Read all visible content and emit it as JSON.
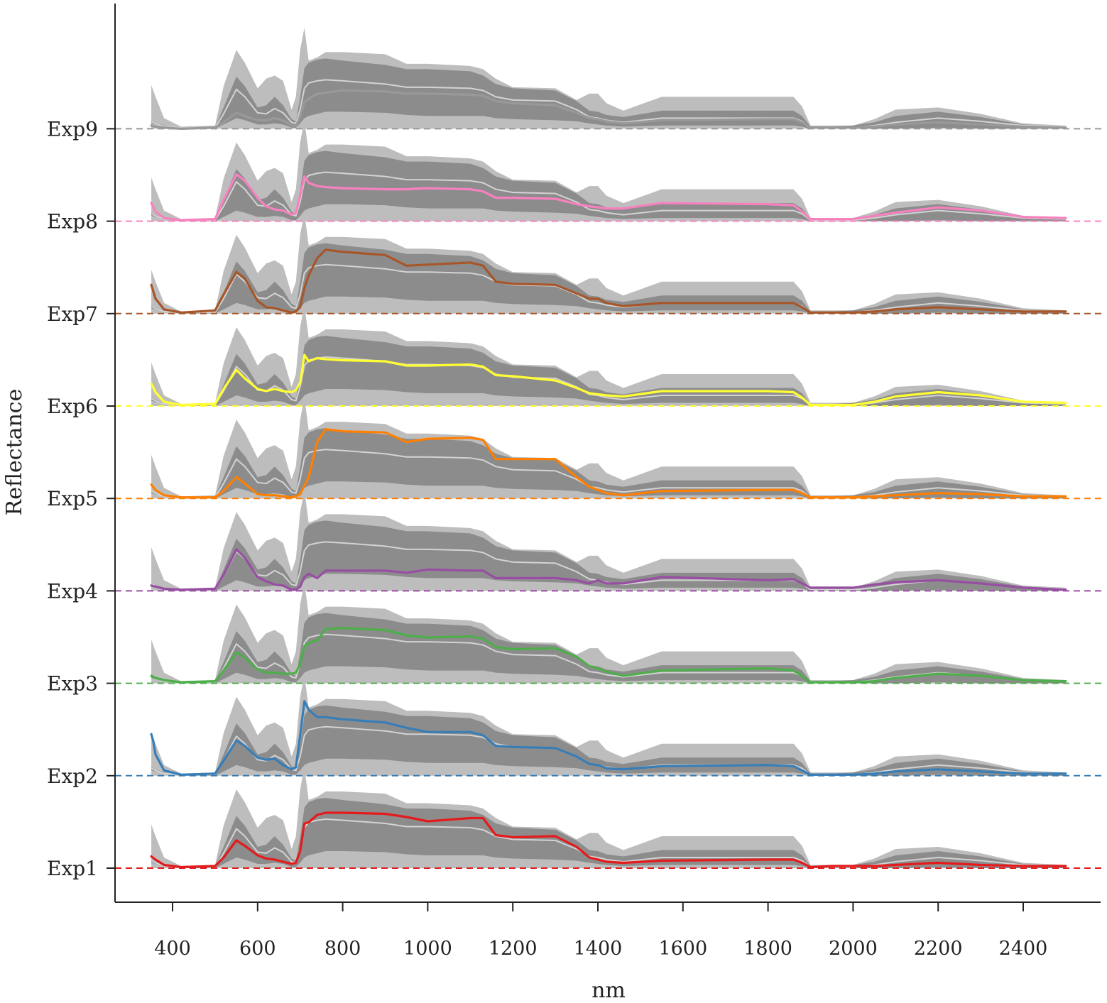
{
  "chart_data": {
    "type": "area",
    "xlabel": "nm",
    "ylabel": "Reflectance",
    "xlim": [
      350,
      2500
    ],
    "x_ticks": [
      400,
      600,
      800,
      1000,
      1200,
      1400,
      1600,
      1800,
      2000,
      2200,
      2400
    ],
    "x_tick_labels": [
      "400",
      "600",
      "800",
      "1000",
      "1200",
      "1400",
      "1600",
      "1800",
      "2000",
      "2200",
      "2400"
    ],
    "categories": [
      "Exp1",
      "Exp2",
      "Exp3",
      "Exp4",
      "Exp5",
      "Exp6",
      "Exp7",
      "Exp8",
      "Exp9"
    ],
    "band_colors": {
      "outer": "#bdbdbd",
      "inner": "#8c8c8c",
      "median": "#d3d3d3"
    },
    "envelope": {
      "x": [
        350,
        360,
        380,
        420,
        500,
        520,
        550,
        570,
        600,
        620,
        640,
        660,
        680,
        690,
        700,
        710,
        720,
        740,
        760,
        800,
        900,
        950,
        1000,
        1100,
        1130,
        1160,
        1200,
        1300,
        1350,
        1380,
        1400,
        1420,
        1460,
        1550,
        1800,
        1860,
        1880,
        1900,
        1950,
        2000,
        2050,
        2100,
        2200,
        2300,
        2400,
        2500
      ],
      "q_low": [
        0.05,
        0.04,
        0.02,
        0.0,
        0.0,
        0.04,
        0.1,
        0.08,
        0.04,
        0.04,
        0.05,
        0.04,
        0.01,
        0.01,
        0.05,
        0.1,
        0.12,
        0.14,
        0.16,
        0.16,
        0.15,
        0.13,
        0.12,
        0.12,
        0.12,
        0.1,
        0.09,
        0.08,
        0.07,
        0.05,
        0.04,
        0.03,
        0.02,
        0.03,
        0.03,
        0.03,
        0.02,
        0.0,
        0.0,
        0.0,
        0.0,
        0.0,
        0.01,
        0.0,
        0.0,
        0.0
      ],
      "q25": [
        0.05,
        0.04,
        0.02,
        0.01,
        0.01,
        0.1,
        0.27,
        0.22,
        0.11,
        0.1,
        0.15,
        0.11,
        0.04,
        0.03,
        0.12,
        0.29,
        0.33,
        0.35,
        0.36,
        0.35,
        0.33,
        0.3,
        0.3,
        0.29,
        0.28,
        0.23,
        0.2,
        0.2,
        0.14,
        0.09,
        0.08,
        0.06,
        0.05,
        0.08,
        0.08,
        0.08,
        0.05,
        0.01,
        0.01,
        0.01,
        0.02,
        0.05,
        0.08,
        0.05,
        0.02,
        0.01
      ],
      "median": [
        0.07,
        0.05,
        0.02,
        0.01,
        0.01,
        0.14,
        0.37,
        0.3,
        0.15,
        0.14,
        0.19,
        0.15,
        0.06,
        0.05,
        0.18,
        0.38,
        0.43,
        0.45,
        0.46,
        0.45,
        0.42,
        0.39,
        0.39,
        0.38,
        0.36,
        0.3,
        0.27,
        0.26,
        0.18,
        0.11,
        0.1,
        0.08,
        0.06,
        0.1,
        0.1,
        0.1,
        0.07,
        0.01,
        0.01,
        0.01,
        0.03,
        0.06,
        0.1,
        0.07,
        0.03,
        0.02
      ],
      "q75": [
        0.08,
        0.06,
        0.03,
        0.01,
        0.02,
        0.2,
        0.49,
        0.4,
        0.2,
        0.22,
        0.3,
        0.22,
        0.09,
        0.07,
        0.29,
        0.57,
        0.62,
        0.65,
        0.66,
        0.64,
        0.6,
        0.56,
        0.56,
        0.54,
        0.5,
        0.42,
        0.38,
        0.36,
        0.26,
        0.17,
        0.16,
        0.13,
        0.11,
        0.17,
        0.17,
        0.17,
        0.12,
        0.02,
        0.02,
        0.03,
        0.06,
        0.12,
        0.16,
        0.11,
        0.04,
        0.02
      ],
      "q_high": [
        0.41,
        0.3,
        0.1,
        0.02,
        0.03,
        0.4,
        0.74,
        0.62,
        0.38,
        0.47,
        0.5,
        0.45,
        0.18,
        0.3,
        0.74,
        0.95,
        0.64,
        0.67,
        0.72,
        0.72,
        0.7,
        0.61,
        0.61,
        0.59,
        0.56,
        0.47,
        0.39,
        0.38,
        0.27,
        0.33,
        0.33,
        0.24,
        0.17,
        0.3,
        0.3,
        0.3,
        0.21,
        0.03,
        0.03,
        0.03,
        0.09,
        0.18,
        0.2,
        0.14,
        0.05,
        0.03
      ]
    },
    "series": [
      {
        "name": "Exp1",
        "color": "#e41a1c",
        "x": [
          350,
          360,
          380,
          420,
          500,
          520,
          550,
          570,
          600,
          620,
          640,
          660,
          680,
          690,
          700,
          710,
          720,
          740,
          760,
          800,
          900,
          950,
          1000,
          1100,
          1130,
          1160,
          1200,
          1300,
          1350,
          1380,
          1400,
          1420,
          1460,
          1550,
          1800,
          1860,
          1880,
          1900,
          1950,
          2000,
          2050,
          2100,
          2200,
          2300,
          2400,
          2500
        ],
        "y": [
          0.11,
          0.08,
          0.03,
          0.01,
          0.02,
          0.1,
          0.26,
          0.21,
          0.12,
          0.09,
          0.08,
          0.06,
          0.04,
          0.05,
          0.16,
          0.42,
          0.43,
          0.5,
          0.52,
          0.52,
          0.51,
          0.48,
          0.44,
          0.47,
          0.47,
          0.31,
          0.29,
          0.3,
          0.2,
          0.1,
          0.08,
          0.06,
          0.05,
          0.07,
          0.08,
          0.08,
          0.05,
          0.01,
          0.02,
          0.02,
          0.02,
          0.03,
          0.05,
          0.03,
          0.02,
          0.02
        ]
      },
      {
        "name": "Exp2",
        "color": "#377eb8",
        "x": [
          350,
          355,
          360,
          380,
          420,
          500,
          520,
          550,
          570,
          600,
          620,
          640,
          660,
          680,
          690,
          700,
          710,
          720,
          740,
          760,
          800,
          900,
          950,
          1000,
          1100,
          1130,
          1160,
          1200,
          1300,
          1350,
          1380,
          1400,
          1420,
          1460,
          1550,
          1800,
          1860,
          1880,
          1900,
          1950,
          2000,
          2050,
          2100,
          2200,
          2300,
          2400,
          2500
        ],
        "y": [
          0.39,
          0.32,
          0.2,
          0.05,
          0.01,
          0.02,
          0.14,
          0.33,
          0.28,
          0.17,
          0.15,
          0.16,
          0.1,
          0.06,
          0.08,
          0.38,
          0.7,
          0.62,
          0.55,
          0.55,
          0.53,
          0.5,
          0.45,
          0.41,
          0.41,
          0.38,
          0.28,
          0.27,
          0.26,
          0.18,
          0.11,
          0.1,
          0.07,
          0.06,
          0.09,
          0.1,
          0.09,
          0.05,
          0.01,
          0.01,
          0.01,
          0.02,
          0.04,
          0.06,
          0.04,
          0.02,
          0.02
        ]
      },
      {
        "name": "Exp3",
        "color": "#4daf4a",
        "x": [
          350,
          360,
          380,
          420,
          500,
          520,
          550,
          570,
          600,
          620,
          640,
          660,
          680,
          690,
          700,
          710,
          720,
          740,
          760,
          800,
          900,
          950,
          1000,
          1100,
          1130,
          1160,
          1200,
          1300,
          1350,
          1380,
          1400,
          1420,
          1460,
          1550,
          1800,
          1860,
          1880,
          1900,
          1950,
          2000,
          2050,
          2100,
          2200,
          2300,
          2400,
          2500
        ],
        "y": [
          0.07,
          0.05,
          0.03,
          0.01,
          0.02,
          0.12,
          0.29,
          0.24,
          0.13,
          0.1,
          0.1,
          0.09,
          0.09,
          0.1,
          0.18,
          0.35,
          0.38,
          0.4,
          0.51,
          0.52,
          0.5,
          0.45,
          0.43,
          0.44,
          0.42,
          0.34,
          0.32,
          0.33,
          0.25,
          0.16,
          0.14,
          0.11,
          0.07,
          0.12,
          0.14,
          0.12,
          0.07,
          0.01,
          0.01,
          0.01,
          0.02,
          0.05,
          0.09,
          0.07,
          0.03,
          0.02
        ]
      },
      {
        "name": "Exp4",
        "color": "#984ea3",
        "x": [
          350,
          360,
          380,
          420,
          500,
          520,
          550,
          570,
          600,
          620,
          640,
          660,
          680,
          690,
          700,
          710,
          720,
          740,
          760,
          800,
          900,
          950,
          1000,
          1100,
          1130,
          1160,
          1200,
          1300,
          1350,
          1380,
          1400,
          1420,
          1460,
          1550,
          1800,
          1860,
          1880,
          1900,
          1950,
          2000,
          2050,
          2100,
          2200,
          2300,
          2400,
          2500
        ],
        "y": [
          0.05,
          0.04,
          0.02,
          0.01,
          0.02,
          0.15,
          0.39,
          0.31,
          0.13,
          0.09,
          0.06,
          0.05,
          0.01,
          0.01,
          0.04,
          0.13,
          0.16,
          0.12,
          0.19,
          0.19,
          0.19,
          0.17,
          0.2,
          0.19,
          0.19,
          0.12,
          0.12,
          0.12,
          0.1,
          0.07,
          0.1,
          0.07,
          0.07,
          0.13,
          0.1,
          0.11,
          0.07,
          0.03,
          0.03,
          0.03,
          0.06,
          0.08,
          0.1,
          0.07,
          0.03,
          0.01
        ]
      },
      {
        "name": "Exp5",
        "color": "#ff7f00",
        "x": [
          350,
          360,
          380,
          420,
          500,
          520,
          550,
          570,
          600,
          620,
          640,
          660,
          680,
          690,
          700,
          710,
          720,
          740,
          760,
          800,
          900,
          950,
          1000,
          1100,
          1130,
          1160,
          1200,
          1300,
          1350,
          1380,
          1400,
          1420,
          1460,
          1550,
          1800,
          1860,
          1880,
          1900,
          1950,
          2000,
          2050,
          2100,
          2200,
          2300,
          2400,
          2500
        ],
        "y": [
          0.13,
          0.08,
          0.03,
          0.01,
          0.01,
          0.07,
          0.2,
          0.14,
          0.04,
          0.03,
          0.03,
          0.02,
          0.01,
          0.02,
          0.04,
          0.12,
          0.2,
          0.53,
          0.65,
          0.63,
          0.62,
          0.53,
          0.56,
          0.57,
          0.55,
          0.37,
          0.37,
          0.37,
          0.2,
          0.11,
          0.08,
          0.05,
          0.03,
          0.07,
          0.08,
          0.08,
          0.05,
          0.01,
          0.01,
          0.01,
          0.02,
          0.03,
          0.05,
          0.04,
          0.02,
          0.02
        ]
      },
      {
        "name": "Exp6",
        "color": "#ffff33",
        "x": [
          350,
          360,
          380,
          420,
          500,
          520,
          550,
          570,
          600,
          620,
          640,
          660,
          680,
          690,
          700,
          710,
          720,
          740,
          760,
          800,
          900,
          950,
          1000,
          1100,
          1130,
          1160,
          1200,
          1300,
          1350,
          1380,
          1400,
          1420,
          1460,
          1550,
          1800,
          1860,
          1880,
          1900,
          1950,
          2000,
          2050,
          2100,
          2200,
          2300,
          2400,
          2500
        ],
        "y": [
          0.21,
          0.13,
          0.04,
          0.01,
          0.02,
          0.16,
          0.34,
          0.26,
          0.16,
          0.14,
          0.16,
          0.14,
          0.13,
          0.15,
          0.22,
          0.48,
          0.42,
          0.45,
          0.44,
          0.43,
          0.42,
          0.38,
          0.38,
          0.39,
          0.37,
          0.29,
          0.28,
          0.24,
          0.17,
          0.12,
          0.11,
          0.1,
          0.09,
          0.14,
          0.14,
          0.13,
          0.08,
          0.01,
          0.01,
          0.01,
          0.04,
          0.09,
          0.13,
          0.1,
          0.04,
          0.03
        ]
      },
      {
        "name": "Exp7",
        "color": "#a65628",
        "x": [
          350,
          360,
          380,
          420,
          500,
          520,
          550,
          570,
          600,
          620,
          640,
          660,
          680,
          690,
          700,
          710,
          720,
          740,
          760,
          800,
          900,
          950,
          1000,
          1100,
          1130,
          1160,
          1200,
          1300,
          1350,
          1380,
          1400,
          1420,
          1460,
          1550,
          1800,
          1860,
          1880,
          1900,
          1950,
          2000,
          2050,
          2100,
          2200,
          2300,
          2400,
          2500
        ],
        "y": [
          0.27,
          0.14,
          0.04,
          0.01,
          0.03,
          0.18,
          0.39,
          0.33,
          0.12,
          0.06,
          0.05,
          0.03,
          0.01,
          0.02,
          0.06,
          0.24,
          0.36,
          0.52,
          0.6,
          0.58,
          0.55,
          0.45,
          0.46,
          0.48,
          0.45,
          0.3,
          0.28,
          0.27,
          0.19,
          0.14,
          0.14,
          0.1,
          0.07,
          0.1,
          0.1,
          0.1,
          0.06,
          0.01,
          0.01,
          0.01,
          0.02,
          0.04,
          0.06,
          0.04,
          0.02,
          0.02
        ]
      },
      {
        "name": "Exp8",
        "color": "#f781bf",
        "x": [
          350,
          360,
          380,
          420,
          500,
          520,
          550,
          570,
          600,
          620,
          640,
          660,
          680,
          690,
          700,
          710,
          720,
          740,
          760,
          800,
          900,
          950,
          1000,
          1100,
          1130,
          1160,
          1200,
          1300,
          1350,
          1380,
          1400,
          1420,
          1460,
          1550,
          1800,
          1860,
          1880,
          1900,
          1950,
          2000,
          2050,
          2100,
          2200,
          2300,
          2400,
          2500
        ],
        "y": [
          0.17,
          0.09,
          0.03,
          0.01,
          0.02,
          0.2,
          0.44,
          0.38,
          0.22,
          0.14,
          0.11,
          0.1,
          0.06,
          0.08,
          0.24,
          0.42,
          0.36,
          0.33,
          0.32,
          0.31,
          0.3,
          0.3,
          0.31,
          0.3,
          0.28,
          0.22,
          0.22,
          0.21,
          0.16,
          0.14,
          0.13,
          0.12,
          0.12,
          0.17,
          0.16,
          0.15,
          0.09,
          0.02,
          0.02,
          0.02,
          0.05,
          0.08,
          0.13,
          0.1,
          0.04,
          0.03
        ]
      },
      {
        "name": "Exp9",
        "color": "#999999",
        "x": [
          350,
          360,
          380,
          420,
          500,
          520,
          550,
          570,
          600,
          620,
          640,
          660,
          680,
          690,
          700,
          710,
          720,
          740,
          760,
          800,
          900,
          950,
          1000,
          1100,
          1130,
          1160,
          1200,
          1300,
          1350,
          1380,
          1400,
          1420,
          1460,
          1550,
          1800,
          1860,
          1880,
          1900,
          1950,
          2000,
          2050,
          2100,
          2200,
          2300,
          2400,
          2500
        ],
        "y": [
          0.03,
          0.02,
          0.01,
          0.0,
          0.01,
          0.06,
          0.15,
          0.12,
          0.08,
          0.08,
          0.1,
          0.08,
          0.03,
          0.03,
          0.11,
          0.25,
          0.28,
          0.33,
          0.34,
          0.36,
          0.35,
          0.33,
          0.33,
          0.32,
          0.31,
          0.26,
          0.24,
          0.22,
          0.15,
          0.1,
          0.09,
          0.07,
          0.05,
          0.08,
          0.09,
          0.09,
          0.06,
          0.01,
          0.01,
          0.01,
          0.02,
          0.04,
          0.06,
          0.04,
          0.02,
          0.01
        ]
      }
    ]
  }
}
